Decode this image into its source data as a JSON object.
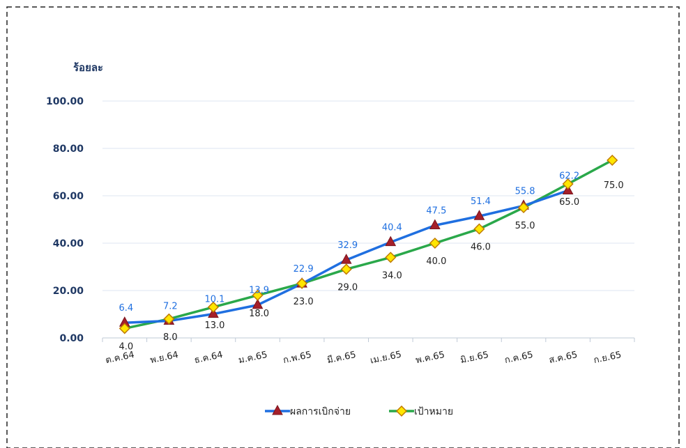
{
  "chart_data": {
    "type": "line",
    "ylabel": "ร้อยละ",
    "ylim": [
      0,
      100
    ],
    "yticks": [
      "0.00",
      "20.00",
      "40.00",
      "60.00",
      "80.00",
      "100.00"
    ],
    "categories": [
      "ต.ค.64",
      "พ.ย.64",
      "ธ.ค.64",
      "ม.ค.65",
      "ก.พ.65",
      "มี.ค.65",
      "เม.ย.65",
      "พ.ค.65",
      "มิ.ย.65",
      "ก.ค.65",
      "ส.ค.65",
      "ก.ย.65"
    ],
    "series": [
      {
        "name": "ผลการเบิกจ่าย",
        "color": "#1f6fe0",
        "marker": "triangle",
        "values": [
          6.4,
          7.2,
          10.1,
          13.9,
          22.9,
          32.9,
          40.4,
          47.5,
          51.4,
          55.8,
          62.2,
          null
        ],
        "labels": [
          "6.4",
          "7.2",
          "10.1",
          "13.9",
          "22.9",
          "32.9",
          "40.4",
          "47.5",
          "51.4",
          "55.8",
          "62.2",
          ""
        ]
      },
      {
        "name": "เป้าหมาย",
        "color": "#2aa84a",
        "marker": "diamond",
        "values": [
          4.0,
          8.0,
          13.0,
          18.0,
          23.0,
          29.0,
          34.0,
          40.0,
          46.0,
          55.0,
          65.0,
          75.0
        ],
        "labels": [
          "4.0",
          "8.0",
          "13.0",
          "18.0",
          "23.0",
          "29.0",
          "34.0",
          "40.0",
          "46.0",
          "55.0",
          "65.0",
          "75.0"
        ]
      }
    ],
    "grid": true,
    "legend": "bottom"
  }
}
